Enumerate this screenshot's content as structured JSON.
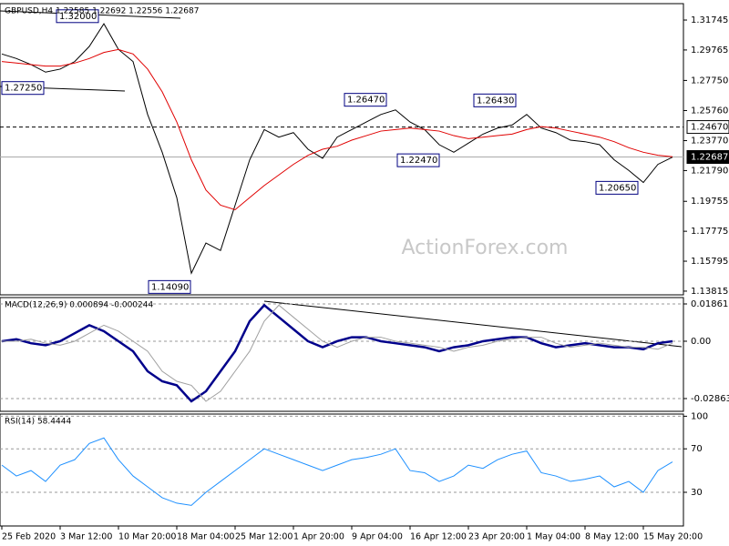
{
  "chart_data": [
    {
      "type": "line",
      "title": "GBPUSD,H4  1.22585 1.22692 1.22556 1.22687",
      "watermark": "ActionForex.com",
      "ylim": [
        1.1357,
        1.3283
      ],
      "yticks": [
        1.31745,
        1.29765,
        {
          "value": 1.2775,
          "label": "1.27750"
        },
        {
          "value": 1.2576,
          "label": "1.25760"
        },
        {
          "value": 1.2377,
          "label": "1.23770"
        },
        {
          "value": 1.2179,
          "label": "1.21790"
        },
        1.19755,
        1.17775,
        1.15795,
        1.13815
      ],
      "grid": false,
      "series": [
        {
          "color": "#000000",
          "values": [
            1.295,
            1.292,
            1.288,
            1.283,
            1.285,
            1.29,
            1.3,
            1.315,
            1.298,
            1.29,
            1.255,
            1.23,
            1.2,
            1.15,
            1.17,
            1.165,
            1.195,
            1.225,
            1.245,
            1.24,
            1.243,
            1.232,
            1.226,
            1.24,
            1.245,
            1.25,
            1.255,
            1.258,
            1.25,
            1.245,
            1.235,
            1.23,
            1.236,
            1.242,
            1.246,
            1.248,
            1.255,
            1.246,
            1.243,
            1.238,
            1.237,
            1.235,
            1.225,
            1.218,
            1.21,
            1.222,
            1.2268
          ]
        },
        {
          "color": "#e00000",
          "values": [
            1.29,
            1.289,
            1.288,
            1.287,
            1.287,
            1.289,
            1.292,
            1.296,
            1.298,
            1.295,
            1.285,
            1.27,
            1.25,
            1.225,
            1.205,
            1.195,
            1.192,
            1.2,
            1.208,
            1.215,
            1.222,
            1.228,
            1.232,
            1.234,
            1.238,
            1.241,
            1.244,
            1.245,
            1.246,
            1.245,
            1.244,
            1.241,
            1.239,
            1.24,
            1.241,
            1.242,
            1.245,
            1.247,
            1.246,
            1.244,
            1.242,
            1.24,
            1.237,
            1.233,
            1.23,
            1.228,
            1.227
          ]
        }
      ],
      "annotations": [
        {
          "value": 1.32,
          "label": "1.32000"
        },
        {
          "value": 1.2725,
          "label": "1.27250"
        },
        {
          "value": 1.2647,
          "label": "1.26470"
        },
        {
          "value": 1.2643,
          "label": "1.26430"
        },
        {
          "value": 1.2247,
          "label": "1.22470"
        },
        {
          "value": 1.2065,
          "label": "1.20650"
        },
        {
          "value": 1.1409,
          "label": "1.14090"
        }
      ],
      "levels": [
        {
          "value": 1.2467,
          "label": "1.24670"
        },
        1.22687
      ]
    },
    {
      "type": "line",
      "title": "MACD(12,26,9) 0.000894 -0.000244",
      "ylim": [
        -0.035,
        0.0218
      ],
      "yticks": [
        0.018615,
        {
          "value": 0,
          "label": "0.00"
        },
        -0.028631
      ],
      "grid": true,
      "series": [
        {
          "color": "#00008b",
          "values": [
            0,
            0.001,
            -0.001,
            -0.002,
            0,
            0.004,
            0.008,
            0.005,
            0,
            -0.005,
            -0.015,
            -0.02,
            -0.022,
            -0.03,
            -0.025,
            -0.015,
            -0.005,
            0.01,
            0.018,
            0.012,
            0.006,
            0,
            -0.003,
            0,
            0.002,
            0.002,
            0,
            -0.001,
            -0.002,
            -0.003,
            -0.005,
            -0.003,
            -0.002,
            0,
            0.001,
            0.002,
            0.002,
            -0.001,
            -0.003,
            -0.002,
            -0.001,
            -0.002,
            -0.003,
            -0.003,
            -0.004,
            -0.001,
            0
          ]
        },
        {
          "color": "#a0a0a0",
          "values": [
            0,
            0,
            0.001,
            -0.001,
            -0.002,
            0,
            0.004,
            0.008,
            0.005,
            0,
            -0.005,
            -0.015,
            -0.02,
            -0.022,
            -0.03,
            -0.025,
            -0.015,
            -0.005,
            0.01,
            0.018,
            0.012,
            0.006,
            0,
            -0.003,
            0,
            0.002,
            0.002,
            0,
            -0.001,
            -0.002,
            -0.003,
            -0.005,
            -0.003,
            -0.002,
            0,
            0.001,
            0.002,
            0.002,
            -0.001,
            -0.003,
            -0.002,
            -0.001,
            -0.002,
            -0.003,
            -0.003,
            -0.004,
            -0.001
          ]
        }
      ]
    },
    {
      "type": "line",
      "title": "RSI(14) 58.4444",
      "ylim": [
        -1,
        102
      ],
      "yticks": [
        100,
        70,
        30
      ],
      "grid": true,
      "categories": [
        "25 Feb 2020",
        null,
        null,
        null,
        "3 Mar 12:00",
        null,
        null,
        null,
        "10 Mar 20:00",
        null,
        null,
        null,
        "18 Mar 04:00",
        null,
        null,
        null,
        "25 Mar 12:00",
        null,
        null,
        null,
        "1 Apr 20:00",
        null,
        null,
        null,
        "9 Apr 04:00",
        null,
        null,
        null,
        "16 Apr 12:00",
        null,
        null,
        null,
        "23 Apr 20:00",
        null,
        null,
        null,
        "1 May 04:00",
        null,
        null,
        null,
        "8 May 12:00",
        null,
        null,
        null,
        "15 May 20:00",
        null,
        null
      ],
      "series": [
        {
          "color": "#1e90ff",
          "values": [
            55,
            45,
            50,
            40,
            55,
            60,
            75,
            80,
            60,
            45,
            35,
            25,
            20,
            18,
            30,
            40,
            50,
            60,
            70,
            65,
            60,
            55,
            50,
            55,
            60,
            62,
            65,
            70,
            50,
            48,
            40,
            45,
            55,
            52,
            60,
            65,
            68,
            48,
            45,
            40,
            42,
            45,
            35,
            40,
            30,
            50,
            58
          ]
        }
      ]
    }
  ]
}
